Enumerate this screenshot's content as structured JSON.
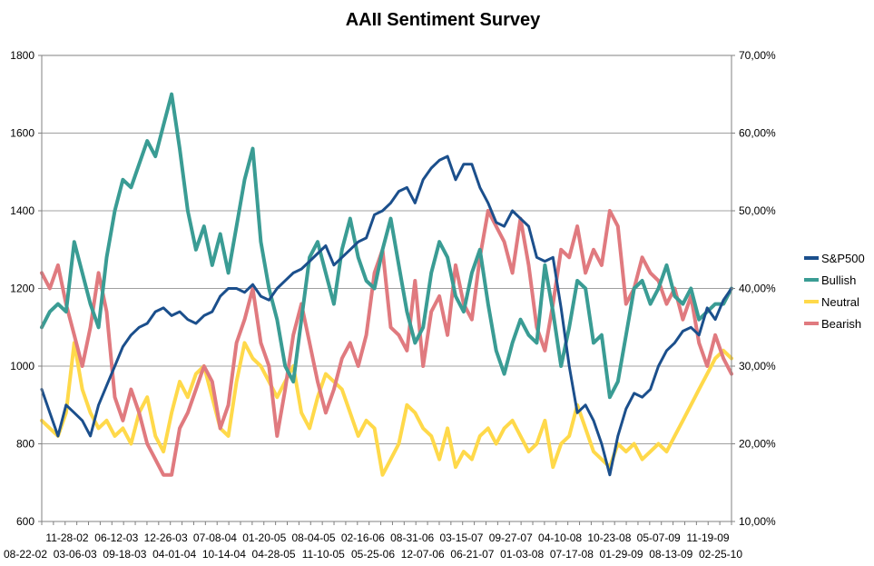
{
  "chart_data": {
    "type": "line",
    "title": "AAII Sentiment Survey",
    "y_left": {
      "min": 600,
      "max": 1800,
      "ticks": [
        600,
        800,
        1000,
        1200,
        1400,
        1600,
        1800
      ]
    },
    "y_right": {
      "min": 0.1,
      "max": 0.7,
      "tick_labels": [
        "10,00%",
        "20,00%",
        "30,00%",
        "40,00%",
        "50,00%",
        "60,00%",
        "70,00%"
      ]
    },
    "grid": true,
    "legend_position": "right",
    "x_labels_row1": [
      "11-28-02",
      "06-12-03",
      "12-26-03",
      "07-08-04",
      "01-20-05",
      "08-04-05",
      "02-16-06",
      "08-31-06",
      "03-15-07",
      "09-27-07",
      "04-10-08",
      "10-23-08",
      "05-07-09",
      "11-19-09"
    ],
    "x_labels_row2": [
      "08-22-02",
      "03-06-03",
      "09-18-03",
      "04-01-04",
      "10-14-04",
      "04-28-05",
      "11-10-05",
      "05-25-06",
      "12-07-06",
      "06-21-07",
      "01-03-08",
      "07-17-08",
      "01-29-09",
      "08-13-09",
      "02-25-10"
    ],
    "series": [
      {
        "name": "S&P500",
        "axis": "left",
        "color": "#1b4f8c",
        "values": [
          940,
          880,
          820,
          900,
          880,
          860,
          820,
          900,
          950,
          1000,
          1050,
          1080,
          1100,
          1110,
          1140,
          1150,
          1130,
          1140,
          1120,
          1110,
          1130,
          1140,
          1180,
          1200,
          1200,
          1190,
          1210,
          1180,
          1170,
          1200,
          1220,
          1240,
          1250,
          1270,
          1290,
          1310,
          1260,
          1280,
          1300,
          1320,
          1330,
          1390,
          1400,
          1420,
          1450,
          1460,
          1420,
          1480,
          1510,
          1530,
          1540,
          1480,
          1520,
          1520,
          1460,
          1420,
          1370,
          1360,
          1400,
          1380,
          1360,
          1280,
          1270,
          1280,
          1150,
          1000,
          880,
          900,
          860,
          800,
          720,
          820,
          890,
          930,
          920,
          940,
          1000,
          1040,
          1060,
          1090,
          1100,
          1080,
          1150,
          1120,
          1170,
          1200
        ]
      },
      {
        "name": "Bullish",
        "axis": "right",
        "color": "#3a9c94",
        "values": [
          0.35,
          0.37,
          0.38,
          0.37,
          0.46,
          0.42,
          0.38,
          0.35,
          0.44,
          0.5,
          0.54,
          0.53,
          0.56,
          0.59,
          0.57,
          0.61,
          0.65,
          0.58,
          0.5,
          0.45,
          0.48,
          0.43,
          0.47,
          0.42,
          0.48,
          0.54,
          0.58,
          0.46,
          0.4,
          0.36,
          0.3,
          0.28,
          0.36,
          0.44,
          0.46,
          0.42,
          0.38,
          0.45,
          0.49,
          0.44,
          0.41,
          0.4,
          0.45,
          0.49,
          0.43,
          0.37,
          0.33,
          0.35,
          0.42,
          0.46,
          0.44,
          0.39,
          0.37,
          0.42,
          0.45,
          0.38,
          0.32,
          0.29,
          0.33,
          0.36,
          0.34,
          0.33,
          0.43,
          0.37,
          0.3,
          0.35,
          0.41,
          0.4,
          0.33,
          0.34,
          0.26,
          0.28,
          0.34,
          0.4,
          0.41,
          0.38,
          0.4,
          0.43,
          0.39,
          0.38,
          0.4,
          0.36,
          0.37,
          0.38,
          0.38,
          0.4
        ]
      },
      {
        "name": "Neutral",
        "axis": "right",
        "color": "#ffd94a",
        "values": [
          0.23,
          0.22,
          0.21,
          0.24,
          0.33,
          0.27,
          0.24,
          0.22,
          0.23,
          0.21,
          0.22,
          0.2,
          0.24,
          0.26,
          0.21,
          0.19,
          0.24,
          0.28,
          0.26,
          0.29,
          0.3,
          0.26,
          0.22,
          0.21,
          0.28,
          0.33,
          0.31,
          0.3,
          0.28,
          0.26,
          0.28,
          0.3,
          0.24,
          0.22,
          0.26,
          0.29,
          0.28,
          0.27,
          0.24,
          0.21,
          0.23,
          0.22,
          0.16,
          0.18,
          0.2,
          0.25,
          0.24,
          0.22,
          0.21,
          0.18,
          0.22,
          0.17,
          0.19,
          0.18,
          0.21,
          0.22,
          0.2,
          0.22,
          0.23,
          0.21,
          0.19,
          0.2,
          0.23,
          0.17,
          0.2,
          0.21,
          0.25,
          0.22,
          0.19,
          0.18,
          0.17,
          0.2,
          0.19,
          0.2,
          0.18,
          0.19,
          0.2,
          0.19,
          0.21,
          0.23,
          0.25,
          0.27,
          0.29,
          0.31,
          0.32,
          0.31
        ]
      },
      {
        "name": "Bearish",
        "axis": "right",
        "color": "#e07a7f",
        "values": [
          0.42,
          0.4,
          0.43,
          0.38,
          0.34,
          0.3,
          0.35,
          0.42,
          0.37,
          0.26,
          0.23,
          0.27,
          0.24,
          0.2,
          0.18,
          0.16,
          0.16,
          0.22,
          0.24,
          0.27,
          0.3,
          0.28,
          0.22,
          0.25,
          0.33,
          0.36,
          0.4,
          0.33,
          0.3,
          0.21,
          0.27,
          0.34,
          0.38,
          0.33,
          0.28,
          0.24,
          0.27,
          0.31,
          0.33,
          0.3,
          0.34,
          0.42,
          0.45,
          0.35,
          0.34,
          0.32,
          0.41,
          0.3,
          0.37,
          0.39,
          0.34,
          0.43,
          0.38,
          0.36,
          0.44,
          0.5,
          0.48,
          0.46,
          0.42,
          0.49,
          0.43,
          0.35,
          0.32,
          0.38,
          0.45,
          0.44,
          0.48,
          0.42,
          0.45,
          0.43,
          0.5,
          0.48,
          0.38,
          0.4,
          0.44,
          0.42,
          0.41,
          0.38,
          0.4,
          0.36,
          0.39,
          0.33,
          0.3,
          0.34,
          0.31,
          0.29
        ]
      }
    ]
  }
}
